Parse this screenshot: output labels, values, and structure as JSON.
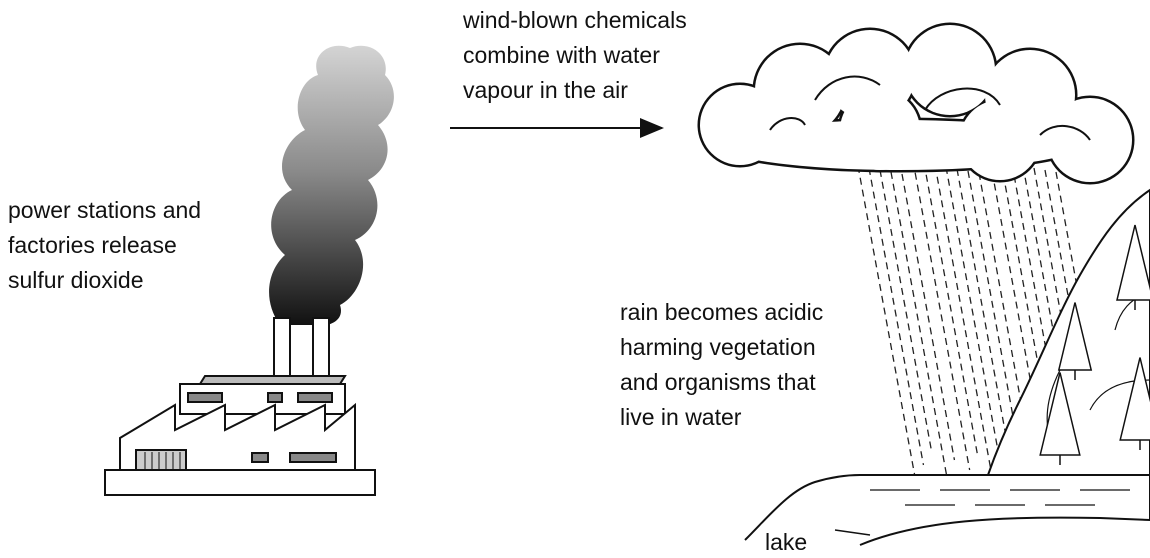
{
  "source": {
    "lines": [
      "power stations and",
      "factories release",
      "sulfur dioxide"
    ]
  },
  "transport": {
    "lines": [
      "wind-blown chemicals",
      "combine with water",
      "vapour in the air"
    ]
  },
  "effect": {
    "lines": [
      "rain becomes acidic",
      "harming vegetation",
      "and organisms that",
      "live in water"
    ]
  },
  "lake": {
    "label": "lake"
  }
}
